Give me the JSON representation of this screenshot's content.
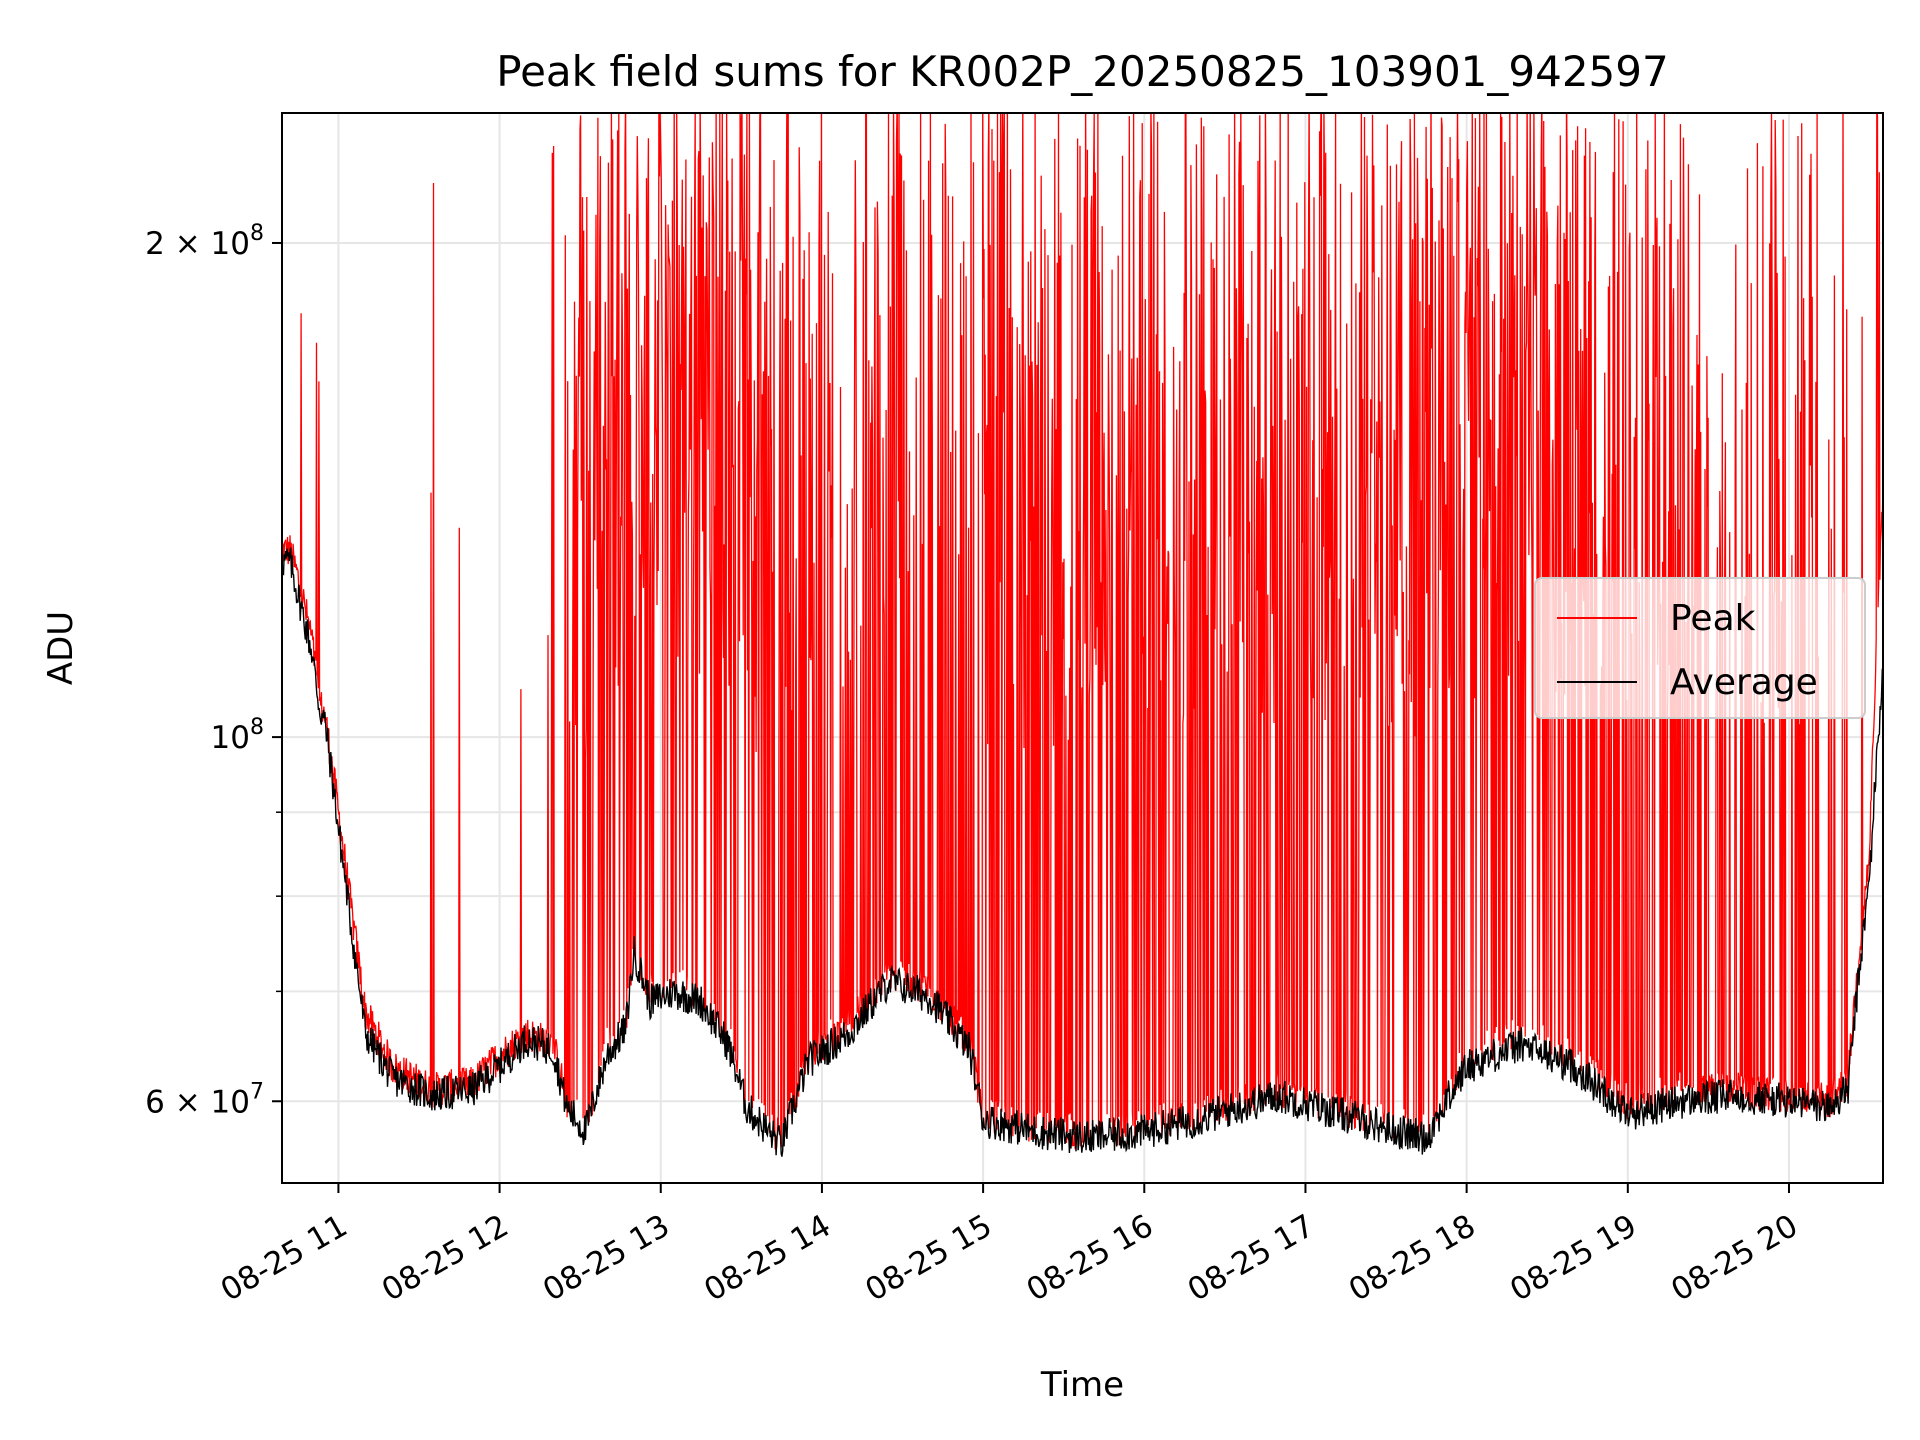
{
  "chart_data": {
    "type": "line",
    "title": "Peak field sums for KR002P_20250825_103901_942597",
    "xlabel": "Time",
    "ylabel": "ADU",
    "y_scale": "log",
    "ylim": [
      53500000,
      240000000
    ],
    "xlim": [
      "2025-08-25 10:39",
      "2025-08-25 20:35"
    ],
    "grid": true,
    "legend_position": "center-right",
    "x_ticks": [
      {
        "time": "2025-08-25 11:00",
        "label": "08-25 11"
      },
      {
        "time": "2025-08-25 12:00",
        "label": "08-25 12"
      },
      {
        "time": "2025-08-25 13:00",
        "label": "08-25 13"
      },
      {
        "time": "2025-08-25 14:00",
        "label": "08-25 14"
      },
      {
        "time": "2025-08-25 15:00",
        "label": "08-25 15"
      },
      {
        "time": "2025-08-25 16:00",
        "label": "08-25 16"
      },
      {
        "time": "2025-08-25 17:00",
        "label": "08-25 17"
      },
      {
        "time": "2025-08-25 18:00",
        "label": "08-25 18"
      },
      {
        "time": "2025-08-25 19:00",
        "label": "08-25 19"
      },
      {
        "time": "2025-08-25 20:00",
        "label": "08-25 20"
      }
    ],
    "y_ticks": [
      {
        "value": 60000000,
        "base": "6 × 10",
        "exp": "7"
      },
      {
        "value": 100000000,
        "base": "10",
        "exp": "8"
      },
      {
        "value": 200000000,
        "base": "2 × 10",
        "exp": "8"
      }
    ],
    "y_minor_ticks": [
      70000000,
      80000000,
      90000000
    ],
    "series": [
      {
        "name": "Peak",
        "color": "#ff0000",
        "baseline_time": [
          "2025-08-25 10:39",
          "2025-08-25 10:42",
          "2025-08-25 10:45",
          "2025-08-25 10:50",
          "2025-08-25 10:53",
          "2025-08-25 10:55",
          "2025-08-25 11:00",
          "2025-08-25 11:05",
          "2025-08-25 11:10",
          "2025-08-25 11:20",
          "2025-08-25 11:35",
          "2025-08-25 11:50",
          "2025-08-25 12:00",
          "2025-08-25 12:10",
          "2025-08-25 12:20",
          "2025-08-25 12:25",
          "2025-08-25 12:32",
          "2025-08-25 12:40",
          "2025-08-25 12:47",
          "2025-08-25 12:50",
          "2025-08-25 12:56",
          "2025-08-25 13:05",
          "2025-08-25 13:15",
          "2025-08-25 13:25",
          "2025-08-25 13:32",
          "2025-08-25 13:40",
          "2025-08-25 13:45",
          "2025-08-25 13:55",
          "2025-08-25 14:10",
          "2025-08-25 14:25",
          "2025-08-25 14:40",
          "2025-08-25 14:55",
          "2025-08-25 15:00",
          "2025-08-25 15:20",
          "2025-08-25 15:40",
          "2025-08-25 16:00",
          "2025-08-25 16:20",
          "2025-08-25 16:35",
          "2025-08-25 16:50",
          "2025-08-25 17:05",
          "2025-08-25 17:20",
          "2025-08-25 17:35",
          "2025-08-25 17:45",
          "2025-08-25 18:00",
          "2025-08-25 18:20",
          "2025-08-25 18:40",
          "2025-08-25 19:00",
          "2025-08-25 19:20",
          "2025-08-25 19:40",
          "2025-08-25 20:00",
          "2025-08-25 20:15",
          "2025-08-25 20:22",
          "2025-08-25 20:30",
          "2025-08-25 20:35"
        ],
        "baseline_values": [
          130000000,
          130000000,
          125000000,
          115000000,
          105000000,
          103000000,
          90000000,
          78000000,
          68000000,
          63000000,
          61000000,
          61500000,
          64000000,
          66000000,
          65000000,
          60000000,
          58000000,
          65000000,
          67000000,
          75000000,
          70000000,
          71000000,
          70000000,
          66000000,
          60000000,
          58000000,
          57000000,
          64000000,
          67000000,
          72000000,
          70000000,
          65000000,
          59000000,
          58000000,
          57500000,
          58000000,
          59000000,
          60000000,
          61000000,
          60000000,
          59000000,
          58000000,
          57500000,
          64000000,
          66000000,
          64000000,
          60000000,
          61000000,
          61000000,
          60500000,
          60000000,
          62000000,
          85000000,
          140000000
        ],
        "max_value": 240000000
      },
      {
        "name": "Average",
        "color": "#000000",
        "time": [
          "2025-08-25 10:39",
          "2025-08-25 10:42",
          "2025-08-25 10:45",
          "2025-08-25 10:50",
          "2025-08-25 10:53",
          "2025-08-25 10:55",
          "2025-08-25 11:00",
          "2025-08-25 11:05",
          "2025-08-25 11:10",
          "2025-08-25 11:20",
          "2025-08-25 11:35",
          "2025-08-25 11:50",
          "2025-08-25 12:00",
          "2025-08-25 12:10",
          "2025-08-25 12:20",
          "2025-08-25 12:25",
          "2025-08-25 12:32",
          "2025-08-25 12:40",
          "2025-08-25 12:47",
          "2025-08-25 12:50",
          "2025-08-25 12:56",
          "2025-08-25 13:05",
          "2025-08-25 13:15",
          "2025-08-25 13:25",
          "2025-08-25 13:32",
          "2025-08-25 13:40",
          "2025-08-25 13:45",
          "2025-08-25 13:55",
          "2025-08-25 14:10",
          "2025-08-25 14:25",
          "2025-08-25 14:40",
          "2025-08-25 14:55",
          "2025-08-25 15:00",
          "2025-08-25 15:20",
          "2025-08-25 15:40",
          "2025-08-25 16:00",
          "2025-08-25 16:20",
          "2025-08-25 16:35",
          "2025-08-25 16:50",
          "2025-08-25 17:05",
          "2025-08-25 17:20",
          "2025-08-25 17:35",
          "2025-08-25 17:45",
          "2025-08-25 18:00",
          "2025-08-25 18:20",
          "2025-08-25 18:40",
          "2025-08-25 19:00",
          "2025-08-25 19:20",
          "2025-08-25 19:40",
          "2025-08-25 20:00",
          "2025-08-25 20:15",
          "2025-08-25 20:22",
          "2025-08-25 20:30",
          "2025-08-25 20:35"
        ],
        "values": [
          128000000,
          128000000,
          122000000,
          113000000,
          104000000,
          102000000,
          88000000,
          76000000,
          66000000,
          62000000,
          60500000,
          61000000,
          63000000,
          65500000,
          64500000,
          59500000,
          57500000,
          64000000,
          66500000,
          74000000,
          69000000,
          70000000,
          69000000,
          65000000,
          59500000,
          57500000,
          56500000,
          63500000,
          66000000,
          71000000,
          69500000,
          64500000,
          58500000,
          57500000,
          57000000,
          57500000,
          58500000,
          59500000,
          60500000,
          59500000,
          58500000,
          57500000,
          57000000,
          63000000,
          65000000,
          63000000,
          59000000,
          60000000,
          60500000,
          60000000,
          59500000,
          61000000,
          82000000,
          110000000
        ]
      }
    ]
  }
}
